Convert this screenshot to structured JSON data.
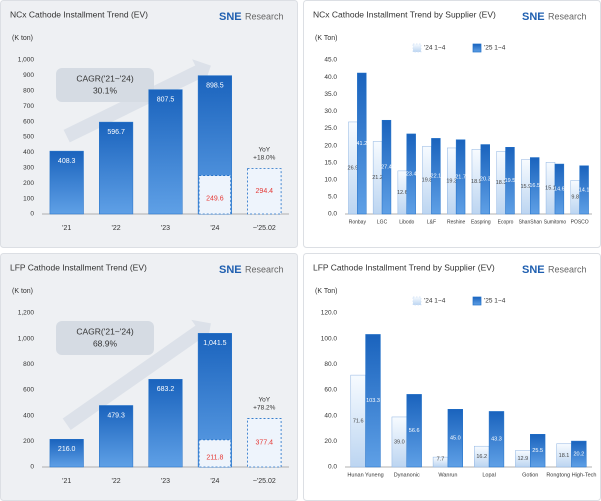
{
  "chart_data": [
    {
      "type": "bar",
      "title": "NCx Cathode Installment Trend (EV)",
      "logo": {
        "mark": "SNE",
        "text": "Research"
      },
      "y_label": "(K ton)",
      "categories": [
        "'21",
        "'22",
        "'23",
        "'24",
        "~'25.02"
      ],
      "values": [
        408.3,
        596.7,
        807.5,
        898.5,
        294.4
      ],
      "partial_values": [
        null,
        null,
        null,
        249.6,
        null
      ],
      "bar_styles": [
        "solid",
        "solid",
        "solid",
        "solid",
        "dashed"
      ],
      "color": "#1f6fc8",
      "highlight_color": "#e53935",
      "ylim": [
        0,
        1000
      ],
      "yticks": [
        0,
        100,
        200,
        300,
        400,
        500,
        600,
        700,
        800,
        900,
        {
          "value": 1000,
          "label": "1,000"
        }
      ],
      "grid": false,
      "cagr_label": "CAGR('21~'24)",
      "cagr_value": "30.1%",
      "yoy_label": "YoY",
      "yoy_value": "+18.0%"
    },
    {
      "type": "grouped_bar",
      "title": "NCx Cathode Installment Trend by Supplier (EV)",
      "logo": {
        "mark": "SNE",
        "text": "Research"
      },
      "y_label": "(K Ton)",
      "categories": [
        "Ronbay",
        "LGC",
        "Libodo",
        "L&F",
        "Reshine",
        "Easpring",
        "Ecopro",
        "ShanShan",
        "Sumitomo",
        "POSCO"
      ],
      "series": [
        {
          "name": "'24 1~4",
          "color": "#cfe0f5",
          "values": [
            26.9,
            21.2,
            12.6,
            19.8,
            19.3,
            18.9,
            18.3,
            15.9,
            15.1,
            9.8
          ]
        },
        {
          "name": "'25 1~4",
          "color": "#1f6fc8",
          "values": [
            41.2,
            27.4,
            23.4,
            22.1,
            21.7,
            20.3,
            19.5,
            16.5,
            14.6,
            14.1
          ]
        }
      ],
      "ylim": [
        0,
        45
      ],
      "yticks": [
        {
          "value": 0,
          "label": "0.0"
        },
        {
          "value": 5,
          "label": "5.0"
        },
        {
          "value": 10,
          "label": "10.0"
        },
        {
          "value": 15,
          "label": "15.0"
        },
        {
          "value": 20,
          "label": "20.0"
        },
        {
          "value": 25,
          "label": "25.0"
        },
        {
          "value": 30,
          "label": "30.0"
        },
        {
          "value": 35,
          "label": "35.0"
        },
        {
          "value": 40,
          "label": "40.0"
        },
        {
          "value": 45,
          "label": "45.0"
        }
      ],
      "grid": false
    },
    {
      "type": "bar",
      "title": "LFP Cathode Installment Trend (EV)",
      "logo": {
        "mark": "SNE",
        "text": "Research"
      },
      "y_label": "(K ton)",
      "categories": [
        "'21",
        "'22",
        "'23",
        "'24",
        "~'25.02"
      ],
      "values": [
        216,
        479.3,
        683.2,
        1041.5,
        377.4
      ],
      "value_labels": [
        "216.0",
        "479.3",
        "683.2",
        "1,041.5",
        "377.4"
      ],
      "partial_values": [
        null,
        null,
        null,
        211.8,
        null
      ],
      "bar_styles": [
        "solid",
        "solid",
        "solid",
        "solid",
        "dashed"
      ],
      "color": "#1f6fc8",
      "highlight_color": "#e53935",
      "ylim": [
        0,
        1200
      ],
      "yticks": [
        0,
        200,
        400,
        600,
        800,
        {
          "value": 1000,
          "label": "1,000"
        },
        {
          "value": 1200,
          "label": "1,200"
        }
      ],
      "grid": false,
      "cagr_label": "CAGR('21~'24)",
      "cagr_value": "68.9%",
      "yoy_label": "YoY",
      "yoy_value": "+78.2%"
    },
    {
      "type": "grouped_bar",
      "title": "LFP Cathode Installment Trend by Supplier (EV)",
      "logo": {
        "mark": "SNE",
        "text": "Research"
      },
      "y_label": "(K Ton)",
      "categories": [
        "Hunan Yuneng",
        "Dynanonic",
        "Wanrun",
        "Lopal",
        "Gotion",
        "Rongtong High-Tech"
      ],
      "series": [
        {
          "name": "'24 1~4",
          "color": "#cfe0f5",
          "values": [
            71.6,
            39,
            7.7,
            16.2,
            12.9,
            18.1
          ],
          "value_labels": [
            "71.6",
            "39.0",
            "7.7",
            "16.2",
            "12.9",
            "18.1"
          ]
        },
        {
          "name": "'25 1~4",
          "color": "#1f6fc8",
          "values": [
            103.3,
            56.6,
            45,
            43.3,
            25.5,
            20.2
          ],
          "value_labels": [
            "103.3",
            "56.6",
            "45.0",
            "43.3",
            "25.5",
            "20.2"
          ]
        }
      ],
      "ylim": [
        0,
        120
      ],
      "yticks": [
        {
          "value": 0,
          "label": "0.0"
        },
        {
          "value": 20,
          "label": "20.0"
        },
        {
          "value": 40,
          "label": "40.0"
        },
        {
          "value": 60,
          "label": "60.0"
        },
        {
          "value": 80,
          "label": "80.0"
        },
        {
          "value": 100,
          "label": "100.0"
        },
        {
          "value": 120,
          "label": "120.0"
        }
      ],
      "grid": false
    }
  ]
}
